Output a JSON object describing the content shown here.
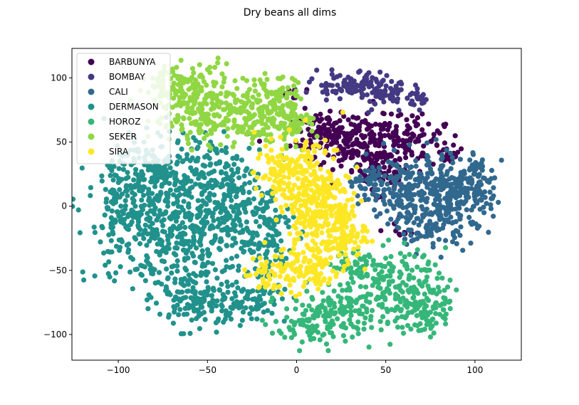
{
  "chart_data": {
    "type": "scatter",
    "title": "Dry beans all dims",
    "xlabel": "",
    "ylabel": "",
    "xlim": [
      -126,
      126
    ],
    "ylim": [
      -120,
      123
    ],
    "xticks": [
      {
        "value": -100,
        "label": "−100"
      },
      {
        "value": -50,
        "label": "−50"
      },
      {
        "value": 0,
        "label": "0"
      },
      {
        "value": 50,
        "label": "50"
      },
      {
        "value": 100,
        "label": "100"
      }
    ],
    "yticks": [
      {
        "value": -100,
        "label": "−100"
      },
      {
        "value": -50,
        "label": "−50"
      },
      {
        "value": 0,
        "label": "0"
      },
      {
        "value": 50,
        "label": "50"
      },
      {
        "value": 100,
        "label": "100"
      }
    ],
    "grid": false,
    "legend_position": "upper-left",
    "series": [
      {
        "name": "BARBUNYA",
        "color": "#440154",
        "clusters": [
          {
            "cx": 28,
            "cy": 52,
            "sx": 15,
            "sy": 10,
            "n": 170
          },
          {
            "cx": 55,
            "cy": 52,
            "sx": 14,
            "sy": 10,
            "n": 140
          },
          {
            "cx": 12,
            "cy": 60,
            "sx": 6,
            "sy": 6,
            "n": 40
          },
          {
            "cx": 45,
            "cy": 28,
            "sx": 10,
            "sy": 8,
            "n": 60
          },
          {
            "cx": -3,
            "cy": 88,
            "sx": 3,
            "sy": 3,
            "n": 10
          },
          {
            "cx": 85,
            "cy": 38,
            "sx": 4,
            "sy": 4,
            "n": 15
          },
          {
            "cx": 60,
            "cy": -20,
            "sx": 6,
            "sy": 4,
            "n": 10
          }
        ]
      },
      {
        "name": "BOMBAY",
        "color": "#443983",
        "clusters": [
          {
            "cx": 30,
            "cy": 95,
            "sx": 11,
            "sy": 5,
            "n": 90
          },
          {
            "cx": 52,
            "cy": 88,
            "sx": 10,
            "sy": 5,
            "n": 70
          },
          {
            "cx": 65,
            "cy": 82,
            "sx": 5,
            "sy": 3,
            "n": 20
          }
        ]
      },
      {
        "name": "CALI",
        "color": "#31688e",
        "clusters": [
          {
            "cx": 85,
            "cy": 10,
            "sx": 12,
            "sy": 15,
            "n": 220
          },
          {
            "cx": 60,
            "cy": 15,
            "sx": 10,
            "sy": 12,
            "n": 140
          },
          {
            "cx": 100,
            "cy": 15,
            "sx": 6,
            "sy": 12,
            "n": 80
          },
          {
            "cx": 75,
            "cy": -15,
            "sx": 10,
            "sy": 8,
            "n": 80
          },
          {
            "cx": 40,
            "cy": 20,
            "sx": 6,
            "sy": 6,
            "n": 40
          }
        ]
      },
      {
        "name": "DERMASON",
        "color": "#21918c",
        "clusters": [
          {
            "cx": -90,
            "cy": -10,
            "sx": 14,
            "sy": 24,
            "n": 280
          },
          {
            "cx": -60,
            "cy": -20,
            "sx": 14,
            "sy": 27,
            "n": 300
          },
          {
            "cx": -40,
            "cy": 10,
            "sx": 10,
            "sy": 20,
            "n": 180
          },
          {
            "cx": -20,
            "cy": -20,
            "sx": 9,
            "sy": 20,
            "n": 130
          },
          {
            "cx": -75,
            "cy": 30,
            "sx": 14,
            "sy": 12,
            "n": 150
          },
          {
            "cx": -55,
            "cy": -75,
            "sx": 12,
            "sy": 10,
            "n": 120
          },
          {
            "cx": -25,
            "cy": -75,
            "sx": 10,
            "sy": 8,
            "n": 70
          }
        ]
      },
      {
        "name": "HOROZ",
        "color": "#35b779",
        "clusters": [
          {
            "cx": 20,
            "cy": -85,
            "sx": 14,
            "sy": 10,
            "n": 150
          },
          {
            "cx": 55,
            "cy": -65,
            "sx": 14,
            "sy": 15,
            "n": 200
          },
          {
            "cx": 35,
            "cy": -45,
            "sx": 7,
            "sy": 6,
            "n": 50
          },
          {
            "cx": 75,
            "cy": -80,
            "sx": 6,
            "sy": 10,
            "n": 60
          },
          {
            "cx": 0,
            "cy": -95,
            "sx": 5,
            "sy": 6,
            "n": 30
          }
        ]
      },
      {
        "name": "SEKER",
        "color": "#90d743",
        "clusters": [
          {
            "cx": -55,
            "cy": 80,
            "sx": 13,
            "sy": 15,
            "n": 230
          },
          {
            "cx": -25,
            "cy": 72,
            "sx": 12,
            "sy": 13,
            "n": 190
          },
          {
            "cx": -5,
            "cy": 70,
            "sx": 6,
            "sy": 14,
            "n": 90
          },
          {
            "cx": -70,
            "cy": 95,
            "sx": 6,
            "sy": 8,
            "n": 40
          }
        ]
      },
      {
        "name": "SIRA",
        "color": "#fde725",
        "clusters": [
          {
            "cx": 10,
            "cy": 5,
            "sx": 10,
            "sy": 25,
            "n": 300
          },
          {
            "cx": 25,
            "cy": -20,
            "sx": 7,
            "sy": 12,
            "n": 110
          },
          {
            "cx": -10,
            "cy": 25,
            "sx": 7,
            "sy": 12,
            "n": 80
          },
          {
            "cx": 5,
            "cy": -50,
            "sx": 10,
            "sy": 8,
            "n": 80
          },
          {
            "cx": -18,
            "cy": -55,
            "sx": 6,
            "sy": 8,
            "n": 40
          }
        ]
      }
    ]
  }
}
